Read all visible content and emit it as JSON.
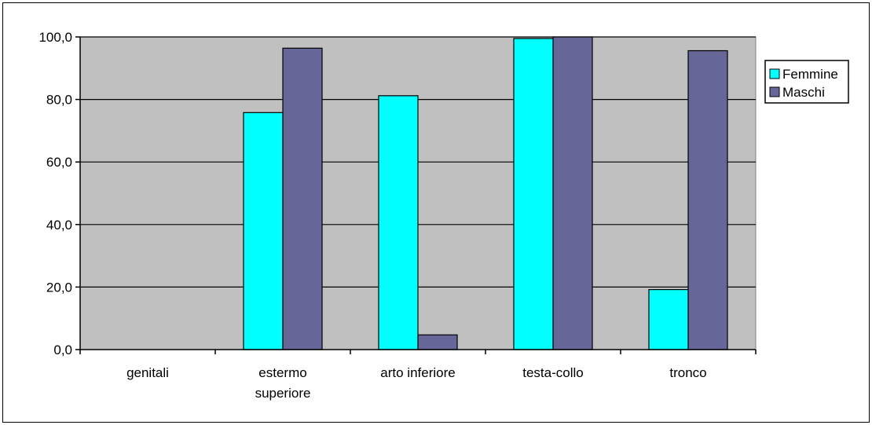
{
  "chart_data": {
    "type": "bar",
    "categories": [
      [
        "genitali"
      ],
      [
        "estermo",
        "superiore"
      ],
      [
        "arto inferiore"
      ],
      [
        "testa-collo"
      ],
      [
        "tronco"
      ]
    ],
    "series": [
      {
        "name": "Femmine",
        "values": [
          0,
          75.8,
          81.2,
          99.5,
          19.2
        ]
      },
      {
        "name": "Maschi",
        "values": [
          0,
          96.4,
          4.7,
          100.0,
          95.6
        ]
      }
    ],
    "ylim": [
      0,
      100
    ],
    "yticks": [
      "0,0",
      "20,0",
      "40,0",
      "60,0",
      "80,0",
      "100,0"
    ],
    "grid": true,
    "legend_position": "right",
    "colors": {
      "plot_background": "#c0c0c0",
      "Femmine": "#00ffff",
      "Maschi": "#666699",
      "gridline": "#000000"
    }
  }
}
